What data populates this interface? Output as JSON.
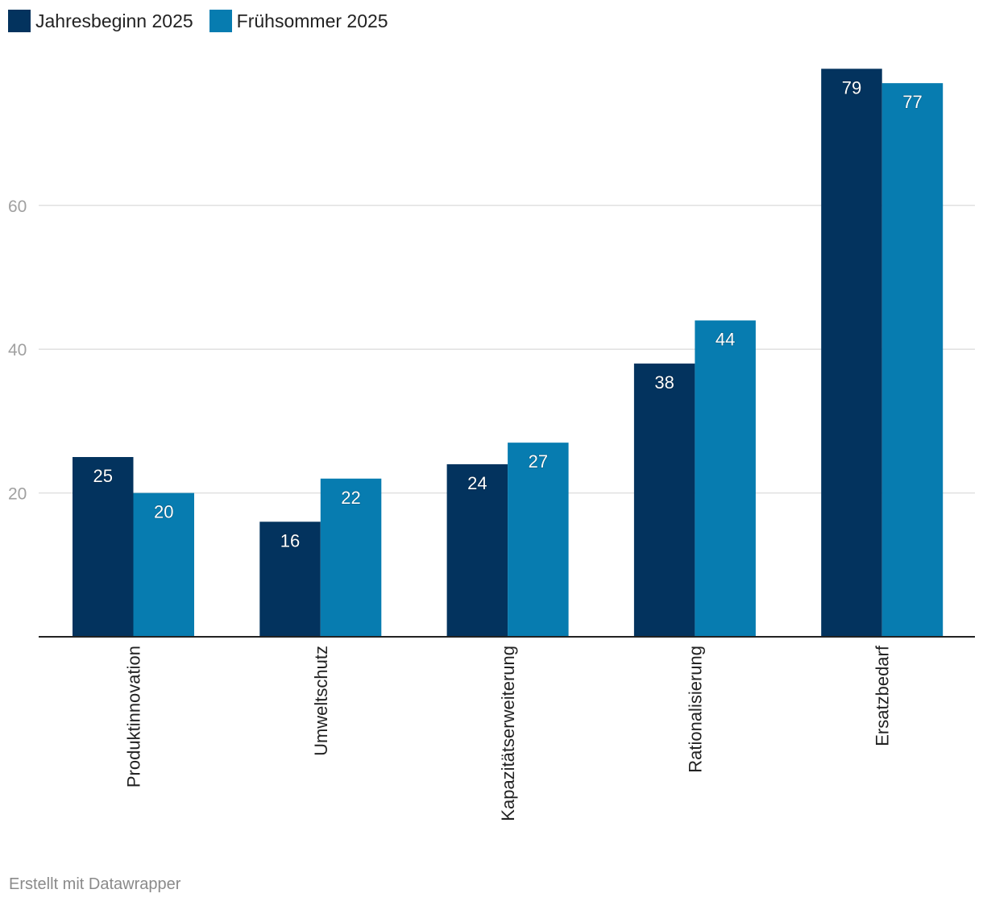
{
  "legend": {
    "series1_label": "Jahresbeginn 2025",
    "series2_label": "Frühsommer 2025"
  },
  "colors": {
    "series1": "#03335e",
    "series2": "#077cb0"
  },
  "footer": {
    "credit": "Erstellt mit Datawrapper"
  },
  "chart_data": {
    "type": "bar",
    "title": "",
    "xlabel": "",
    "ylabel": "",
    "categories": [
      "Produktinnovation",
      "Umweltschutz",
      "Kapazitätserweiterung",
      "Rationalisierung",
      "Ersatzbedarf"
    ],
    "series": [
      {
        "name": "Jahresbeginn 2025",
        "values": [
          25,
          16,
          24,
          38,
          79
        ]
      },
      {
        "name": "Frühsommer 2025",
        "values": [
          20,
          22,
          27,
          44,
          77
        ]
      }
    ],
    "yticks": [
      20,
      40,
      60
    ],
    "ylim": [
      0,
      80
    ],
    "grid": true,
    "legend_position": "top-left"
  }
}
